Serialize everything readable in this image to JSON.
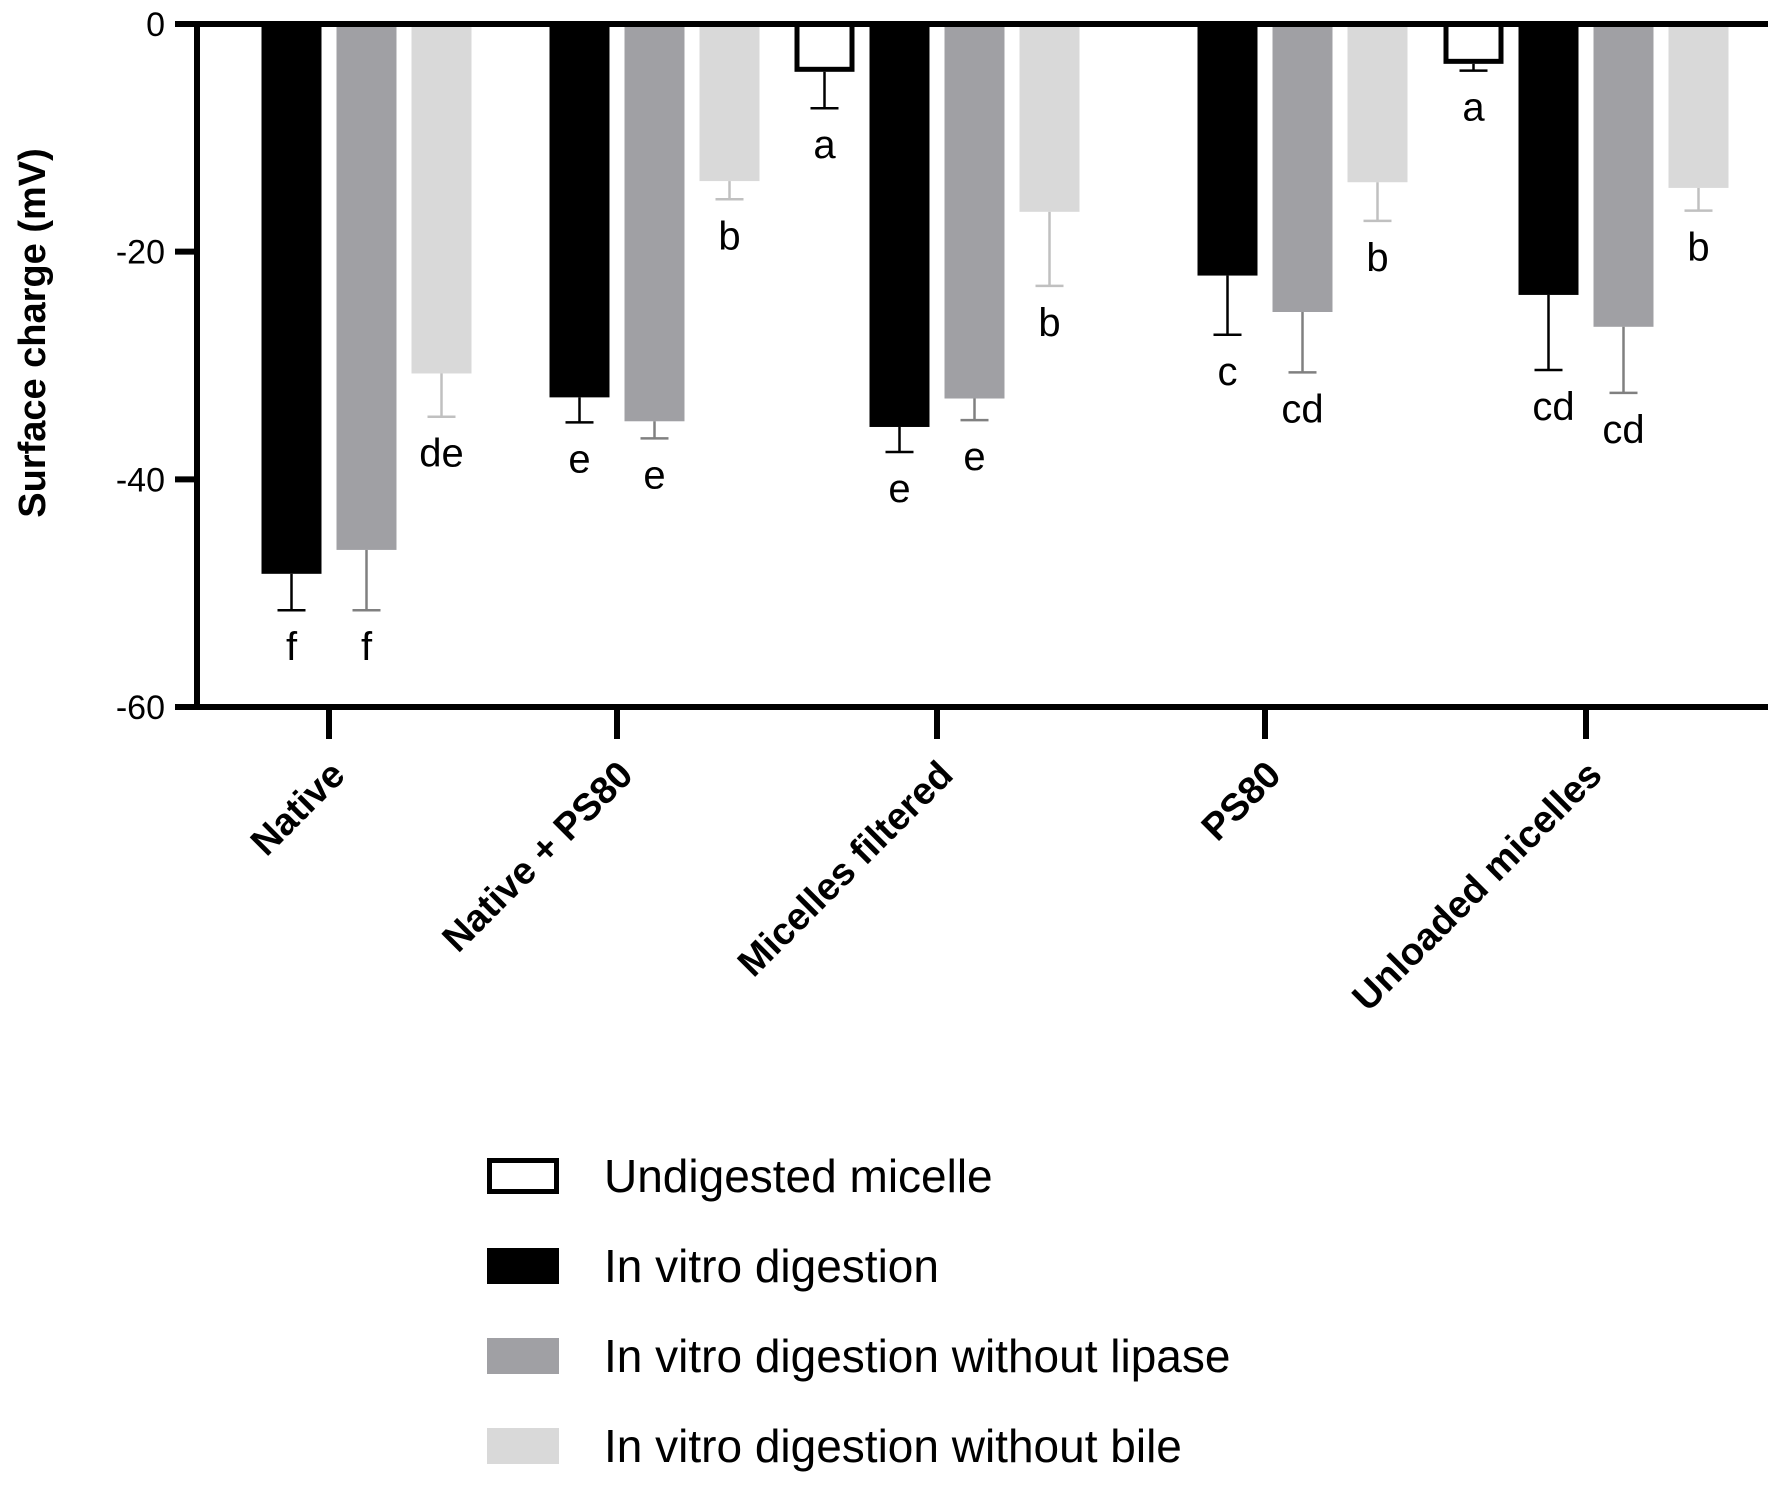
{
  "chart_data": {
    "type": "bar",
    "ylabel": "Surface charge (mV)",
    "ylim": [
      -60,
      0
    ],
    "yticks": [
      0,
      -20,
      -40,
      -60
    ],
    "ytick_labels": [
      "0",
      "-20",
      "-40",
      "-60"
    ],
    "grid": false,
    "legend_position": "bottom",
    "categories": [
      "Native",
      "Native + PS80",
      "Micelles filtered",
      "PS80",
      "Unloaded micelles"
    ],
    "series": [
      {
        "name": "Undigested micelle",
        "color": "#ffffff",
        "stroke": "#000000",
        "error_color": "#000000",
        "values": [
          null,
          null,
          -4.2,
          null,
          -3.5
        ],
        "errors": [
          null,
          null,
          3.2,
          null,
          0.6
        ],
        "labels": [
          "",
          "",
          "a",
          "",
          "a"
        ]
      },
      {
        "name": "In vitro digestion",
        "color": "#000000",
        "stroke": "#000000",
        "error_color": "#000000",
        "values": [
          -48.3,
          -32.8,
          -35.4,
          -22.1,
          -23.8
        ],
        "errors": [
          3.2,
          2.2,
          2.2,
          5.2,
          6.6
        ],
        "labels": [
          "f",
          "e",
          "e",
          "c",
          "cd"
        ]
      },
      {
        "name": "In vitro digestion without lipase",
        "color": "#a0a0a4",
        "stroke": "#a0a0a4",
        "error_color": "#808080",
        "values": [
          -46.2,
          -34.9,
          -32.9,
          -25.3,
          -26.6
        ],
        "errors": [
          5.3,
          1.5,
          1.9,
          5.3,
          5.8
        ],
        "labels": [
          "f",
          "e",
          "e",
          "cd",
          "cd"
        ]
      },
      {
        "name": "In vitro digestion without bile",
        "color": "#d9d9d9",
        "stroke": "#d9d9d9",
        "error_color": "#c0c0c0",
        "values": [
          -30.7,
          -13.8,
          -16.5,
          -13.9,
          -14.4
        ],
        "errors": [
          3.8,
          1.6,
          6.5,
          3.4,
          2.0
        ],
        "labels": [
          "de",
          "b",
          "b",
          "b",
          "b"
        ]
      }
    ]
  }
}
